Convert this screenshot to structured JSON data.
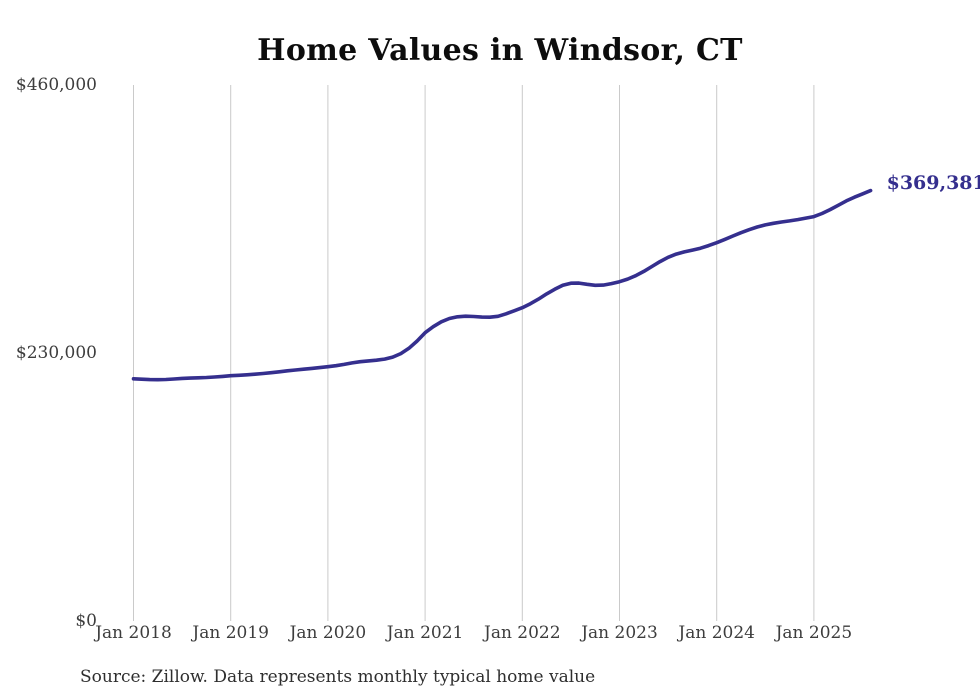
{
  "chart_data": {
    "type": "line",
    "title": "Home Values in Windsor, CT",
    "source_note": "Source: Zillow. Data represents monthly typical home value",
    "series_name": "Typical home value",
    "frequency": "monthly",
    "x_start": "Jan 2018",
    "x_end": "Aug 2025",
    "x_tick_labels": [
      "Jan 2018",
      "Jan 2019",
      "Jan 2020",
      "Jan 2021",
      "Jan 2022",
      "Jan 2023",
      "Jan 2024",
      "Jan 2025"
    ],
    "y_ticks": [
      {
        "value": 0,
        "label": "$0"
      },
      {
        "value": 230000,
        "label": "$230,000"
      },
      {
        "value": 460000,
        "label": "$460,000"
      }
    ],
    "ylim": [
      0,
      460000
    ],
    "end_label": "$369,381",
    "end_value": 369381,
    "line_color": "#352f8e",
    "grid_color": "#cacaca",
    "legend": "none",
    "grid": "vertical-only",
    "values": [
      207900,
      207500,
      207200,
      207100,
      207300,
      207700,
      208200,
      208500,
      208700,
      209000,
      209400,
      209900,
      210500,
      210900,
      211300,
      211800,
      212400,
      213100,
      213900,
      214700,
      215400,
      216100,
      216800,
      217500,
      218200,
      219100,
      220200,
      221500,
      222500,
      223200,
      223800,
      224800,
      226500,
      229500,
      234000,
      240200,
      247400,
      252600,
      256800,
      259600,
      261100,
      261600,
      261300,
      260800,
      260700,
      261500,
      263600,
      266200,
      268900,
      272300,
      276300,
      280700,
      284700,
      288100,
      289900,
      290000,
      289000,
      288100,
      288300,
      289600,
      291200,
      293400,
      296300,
      300000,
      304200,
      308400,
      312100,
      314900,
      316800,
      318300,
      319900,
      322200,
      324700,
      327500,
      330400,
      333200,
      335800,
      338100,
      339900,
      341300,
      342400,
      343400,
      344500,
      345800,
      347100,
      349700,
      353100,
      356800,
      360500,
      363700,
      366500,
      369381
    ]
  }
}
